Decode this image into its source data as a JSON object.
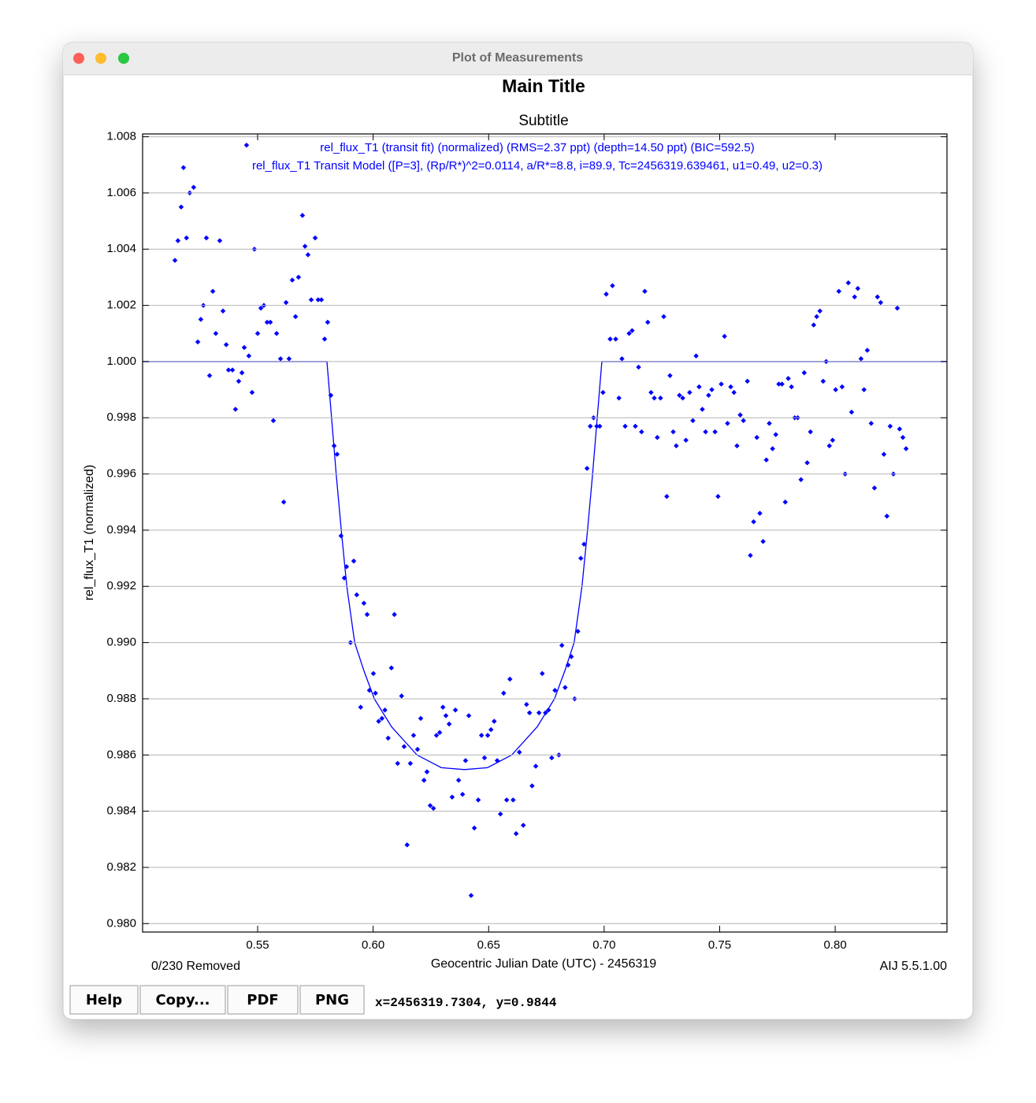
{
  "window": {
    "title": "Plot of Measurements",
    "removed": "0/230 Removed",
    "version": "AIJ 5.5.1.00",
    "buttons": [
      "Help",
      "Copy...",
      "PDF",
      "PNG"
    ],
    "status": "x=2456319.7304, y=0.9844"
  },
  "chart_data": {
    "type": "scatter",
    "title": "Main Title",
    "subtitle": "Subtitle",
    "x_label": "Geocentric Julian Date (UTC) - 2456319",
    "y_label": "rel_flux_T1 (normalized)",
    "xlim": [
      0.5002,
      0.8484
    ],
    "ylim": [
      0.9797,
      1.0081
    ],
    "xticks": [
      {
        "value": 0.55,
        "label": "0.55"
      },
      {
        "value": 0.6,
        "label": "0.60"
      },
      {
        "value": 0.65,
        "label": "0.65"
      },
      {
        "value": 0.7,
        "label": "0.70"
      },
      {
        "value": 0.75,
        "label": "0.75"
      },
      {
        "value": 0.8,
        "label": "0.80"
      }
    ],
    "yticks": [
      {
        "value": 0.98,
        "label": "0.980"
      },
      0.982,
      0.984,
      0.986,
      0.988,
      {
        "value": 0.99,
        "label": "0.990"
      },
      0.992,
      0.994,
      0.996,
      0.998,
      {
        "value": 1,
        "label": "1.000"
      },
      1.002,
      1.004,
      1.006,
      1.008
    ],
    "grid": "y",
    "legend": "top",
    "series": [
      {
        "name": "rel_flux_T1 (transit fit) (normalized) (RMS=2.37 ppt) (depth=14.50 ppt) (BIC=592.5)",
        "color": "#0000ff",
        "mark": "point",
        "x": [
          0.5142,
          0.5155,
          0.5169,
          0.5179,
          0.5192,
          0.5206,
          0.5223,
          0.5241,
          0.5254,
          0.5265,
          0.5278,
          0.5292,
          0.5306,
          0.5319,
          0.5336,
          0.535,
          0.5364,
          0.5374,
          0.5391,
          0.5404,
          0.5418,
          0.5432,
          0.5442,
          0.5452,
          0.5462,
          0.5476,
          0.5486,
          0.55,
          0.5514,
          0.5527,
          0.5541,
          0.5555,
          0.5568,
          0.5582,
          0.5599,
          0.5613,
          0.5623,
          0.5636,
          0.565,
          0.5664,
          0.5677,
          0.5694,
          0.5705,
          0.5718,
          0.5732,
          0.5749,
          0.5762,
          0.5776,
          0.579,
          0.5803,
          0.5817,
          0.5831,
          0.5844,
          0.5861,
          0.5875,
          0.5885,
          0.5902,
          0.5916,
          0.5929,
          0.5946,
          0.596,
          0.5974,
          0.5984,
          0.6001,
          0.601,
          0.6024,
          0.6038,
          0.6051,
          0.6065,
          0.6079,
          0.6092,
          0.6106,
          0.6123,
          0.6134,
          0.6147,
          0.6161,
          0.6175,
          0.6192,
          0.6206,
          0.622,
          0.6233,
          0.6247,
          0.6261,
          0.6274,
          0.6288,
          0.6302,
          0.6315,
          0.6329,
          0.6342,
          0.6356,
          0.637,
          0.6387,
          0.64,
          0.6414,
          0.6424,
          0.6438,
          0.6455,
          0.6469,
          0.6482,
          0.6496,
          0.651,
          0.6524,
          0.6537,
          0.6551,
          0.6565,
          0.6578,
          0.6592,
          0.6606,
          0.6619,
          0.6633,
          0.665,
          0.6664,
          0.6677,
          0.6688,
          0.6704,
          0.6718,
          0.6732,
          0.6746,
          0.6759,
          0.6773,
          0.6787,
          0.6804,
          0.6817,
          0.6831,
          0.6844,
          0.6858,
          0.6872,
          0.6886,
          0.6899,
          0.6913,
          0.6926,
          0.694,
          0.6954,
          0.6968,
          0.6981,
          0.6995,
          0.7009,
          0.7026,
          0.7036,
          0.705,
          0.7064,
          0.7077,
          0.7091,
          0.7108,
          0.7121,
          0.7135,
          0.7149,
          0.7162,
          0.7176,
          0.7189,
          0.7203,
          0.7217,
          0.723,
          0.7244,
          0.7258,
          0.7271,
          0.7285,
          0.7299,
          0.7312,
          0.7326,
          0.734,
          0.7354,
          0.737,
          0.7384,
          0.7398,
          0.7411,
          0.7425,
          0.7439,
          0.7452,
          0.7466,
          0.748,
          0.7493,
          0.7507,
          0.7521,
          0.7534,
          0.7548,
          0.7562,
          0.7575,
          0.7589,
          0.7603,
          0.762,
          0.7633,
          0.7647,
          0.7661,
          0.7674,
          0.7688,
          0.7702,
          0.7715,
          0.7729,
          0.7743,
          0.7756,
          0.777,
          0.7784,
          0.7797,
          0.7811,
          0.7825,
          0.7838,
          0.7852,
          0.7866,
          0.7879,
          0.7893,
          0.7907,
          0.792,
          0.7934,
          0.7948,
          0.7961,
          0.7975,
          0.7989,
          0.8002,
          0.8016,
          0.803,
          0.8043,
          0.8057,
          0.8071,
          0.8084,
          0.8098,
          0.8112,
          0.8125,
          0.8139,
          0.8156,
          0.817,
          0.8183,
          0.8197,
          0.8211,
          0.8224,
          0.8238,
          0.8252,
          0.8269,
          0.8279,
          0.8293,
          0.8307
        ],
        "values": [
          1.0036,
          1.0043,
          1.0055,
          1.0069,
          1.0044,
          1.006,
          1.0062,
          1.0007,
          1.0015,
          1.002,
          1.0044,
          0.9995,
          1.0025,
          1.001,
          1.0043,
          1.0018,
          1.0006,
          0.9997,
          0.9997,
          0.9983,
          0.9993,
          0.9996,
          1.0005,
          1.0077,
          1.0002,
          0.9989,
          1.004,
          1.001,
          1.0019,
          1.002,
          1.0014,
          1.0014,
          0.9979,
          1.001,
          1.0001,
          0.995,
          1.0021,
          1.0001,
          1.0029,
          1.0016,
          1.003,
          1.0052,
          1.0041,
          1.0038,
          1.0022,
          1.0044,
          1.0022,
          1.0022,
          1.0008,
          1.0014,
          0.9988,
          0.997,
          0.9967,
          0.9938,
          0.9923,
          0.9927,
          0.99,
          0.9929,
          0.9917,
          0.9877,
          0.9914,
          0.991,
          0.9883,
          0.9889,
          0.9882,
          0.9872,
          0.9873,
          0.9876,
          0.9866,
          0.9891,
          0.991,
          0.9857,
          0.9881,
          0.9863,
          0.9828,
          0.9857,
          0.9867,
          0.9862,
          0.9873,
          0.9851,
          0.9854,
          0.9842,
          0.9841,
          0.9867,
          0.9868,
          0.9877,
          0.9874,
          0.9871,
          0.9845,
          0.9876,
          0.9851,
          0.9846,
          0.9858,
          0.9874,
          0.981,
          0.9834,
          0.9844,
          0.9867,
          0.9859,
          0.9867,
          0.9869,
          0.9872,
          0.9858,
          0.9839,
          0.9882,
          0.9844,
          0.9887,
          0.9844,
          0.9832,
          0.9861,
          0.9835,
          0.9878,
          0.9875,
          0.9849,
          0.9856,
          0.9875,
          0.9889,
          0.9875,
          0.9876,
          0.9859,
          0.9883,
          0.986,
          0.9899,
          0.9884,
          0.9892,
          0.9895,
          0.988,
          0.9904,
          0.993,
          0.9935,
          0.9962,
          0.9977,
          0.998,
          0.9977,
          0.9977,
          0.9989,
          1.0024,
          1.0008,
          1.0027,
          1.0008,
          0.9987,
          1.0001,
          0.9977,
          1.001,
          1.0011,
          0.9977,
          0.9998,
          0.9975,
          1.0025,
          1.0014,
          0.9989,
          0.9987,
          0.9973,
          0.9987,
          1.0016,
          0.9952,
          0.9995,
          0.9975,
          0.997,
          0.9988,
          0.9987,
          0.9972,
          0.9989,
          0.9979,
          1.0002,
          0.9991,
          0.9983,
          0.9975,
          0.9988,
          0.999,
          0.9975,
          0.9952,
          0.9992,
          1.0009,
          0.9978,
          0.9991,
          0.9989,
          0.997,
          0.9981,
          0.9979,
          0.9993,
          0.9931,
          0.9943,
          0.9973,
          0.9946,
          0.9936,
          0.9965,
          0.9978,
          0.9969,
          0.9974,
          0.9992,
          0.9992,
          0.995,
          0.9994,
          0.9991,
          0.998,
          0.998,
          0.9958,
          0.9996,
          0.9964,
          0.9975,
          1.0013,
          1.0016,
          1.0018,
          0.9993,
          1,
          0.997,
          0.9972,
          0.999,
          1.0025,
          0.9991,
          0.996,
          1.0028,
          0.9982,
          1.0023,
          1.0026,
          1.0001,
          0.999,
          1.0004,
          0.9978,
          0.9955,
          1.0023,
          1.0021,
          0.9967,
          0.9945,
          0.9977,
          0.996,
          1.0019,
          0.9976,
          0.9973,
          0.9969
        ]
      },
      {
        "name": "rel_flux_T1 Transit Model ([P=3], (Rp/R*)^2=0.0114, a/R*=8.8, i=89.9, Tc=2456319.639461, u1=0.49, u2=0.3)",
        "color": "#0000ff",
        "mark": "line",
        "x": [
          0.5002,
          0.58,
          0.582,
          0.584,
          0.5862,
          0.5886,
          0.592,
          0.596,
          0.6005,
          0.608,
          0.619,
          0.6295,
          0.6395,
          0.6495,
          0.66,
          0.671,
          0.6785,
          0.683,
          0.687,
          0.6904,
          0.6928,
          0.695,
          0.697,
          0.699,
          0.8484
        ],
        "values": [
          1,
          1,
          0.998,
          0.996,
          0.994,
          0.992,
          0.99,
          0.989,
          0.988,
          0.987,
          0.986,
          0.98555,
          0.98548,
          0.98555,
          0.986,
          0.987,
          0.988,
          0.989,
          0.99,
          0.992,
          0.994,
          0.996,
          0.998,
          1,
          1
        ]
      }
    ]
  }
}
